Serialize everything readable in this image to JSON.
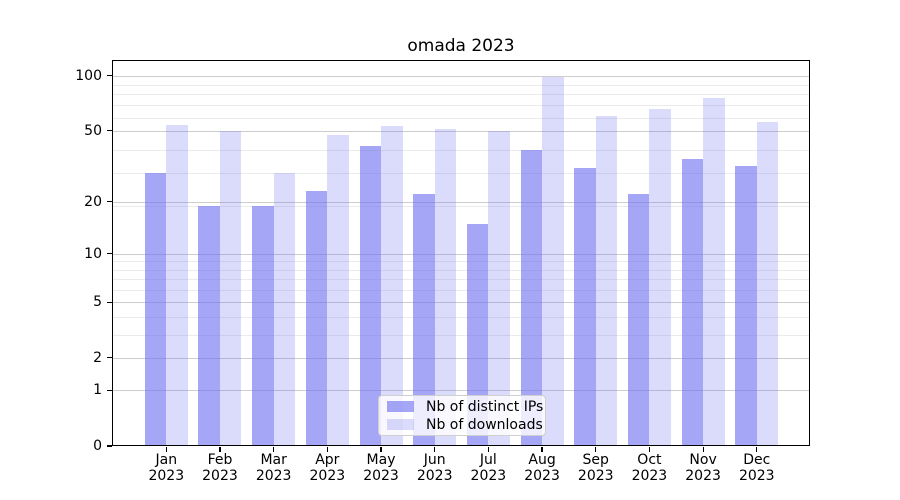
{
  "chart_data": {
    "type": "bar",
    "title": "omada 2023",
    "categories": [
      "Jan",
      "Feb",
      "Mar",
      "Apr",
      "May",
      "Jun",
      "Jul",
      "Aug",
      "Sep",
      "Oct",
      "Nov",
      "Dec"
    ],
    "year": "2023",
    "series": [
      {
        "name": "Nb of distinct IPs",
        "color": "rgba(112,112,240,0.62)",
        "values": [
          29,
          19,
          19,
          23,
          41,
          22,
          15,
          39,
          31,
          22,
          35,
          32
        ]
      },
      {
        "name": "Nb of downloads",
        "color": "rgba(112,112,240,0.25)",
        "values": [
          54,
          50,
          29,
          47,
          53,
          51,
          50,
          98,
          60,
          66,
          76,
          56
        ]
      }
    ],
    "yscale": "log1p",
    "y_ticks": [
      100,
      50,
      20,
      10,
      5,
      2,
      1,
      0
    ],
    "minor_ticks": [
      3,
      4,
      6,
      7,
      8,
      9,
      19,
      29,
      39,
      59,
      69,
      79,
      89
    ],
    "ylim": [
      0,
      125
    ],
    "grid": true,
    "legend_position": "lower center",
    "grid_major_color": "#cdcdcd",
    "grid_minor_color": "#ebebeb"
  }
}
